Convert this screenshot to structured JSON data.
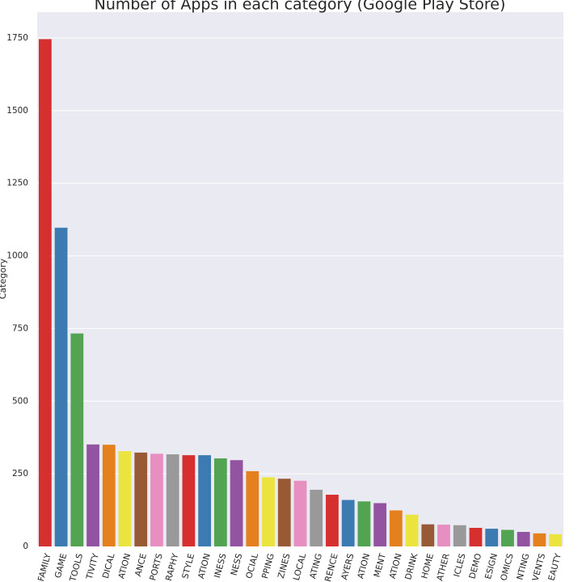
{
  "chart_data": {
    "type": "bar",
    "title": "Number of Apps in each category (Google Play Store)",
    "y_label": "Category",
    "categories": [
      "FAMILY",
      "GAME",
      "TOOLS",
      "TIVITY",
      "DICAL",
      "ATION",
      "ANCE",
      "PORTS",
      "RAPHY",
      "STYLE",
      "ATION",
      "INESS",
      "NESS",
      "OCIAL",
      "PPING",
      "ZINES",
      "LOCAL",
      "ATING",
      "RENCE",
      "AYERS",
      "ATION",
      "MENT",
      "ATION",
      "DRINK",
      "HOME",
      "ATHER",
      "ICLES",
      "DEMO",
      "ESIGN",
      "OMICS",
      "NTING",
      "VENTS",
      "EAUTY"
    ],
    "values": [
      1746,
      1097,
      733,
      351,
      350,
      328,
      323,
      319,
      317,
      314,
      314,
      303,
      297,
      259,
      238,
      233,
      226,
      195,
      178,
      160,
      155,
      149,
      124,
      109,
      76,
      75,
      73,
      64,
      61,
      57,
      50,
      45,
      42
    ],
    "colors": [
      "#d62f2f",
      "#3b7bb1",
      "#52a352",
      "#9253a0",
      "#e5801f",
      "#ece43e",
      "#975a35",
      "#e68fc0",
      "#999999"
    ],
    "ylim": [
      0,
      1800
    ],
    "yticks": [
      0,
      250,
      500,
      750,
      1000,
      1250,
      1500,
      1750
    ],
    "grid": true
  }
}
